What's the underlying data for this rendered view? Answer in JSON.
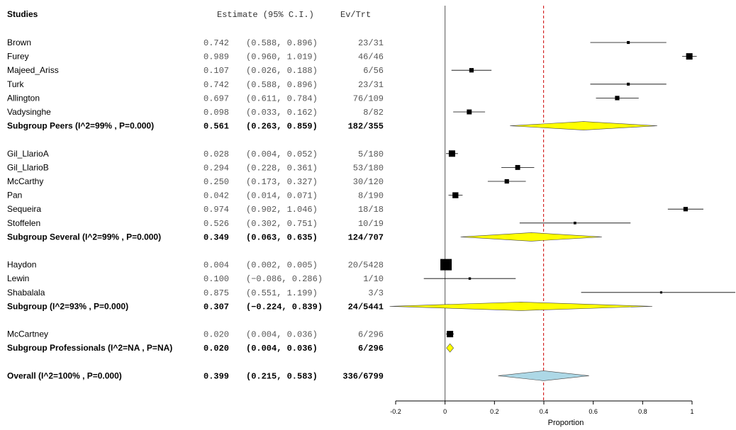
{
  "chart_data": {
    "type": "forest",
    "header": {
      "studies": "Studies",
      "estimate": "Estimate (95% C.I.)",
      "evtrt": "Ev/Trt"
    },
    "xlabel": "Proportion",
    "xlim": [
      -0.2,
      1.0
    ],
    "ticks": [
      "-0.2",
      "0",
      "0.2",
      "0.4",
      "0.6",
      "0.8",
      "1"
    ],
    "tick_values": [
      -0.2,
      0,
      0.2,
      0.4,
      0.6,
      0.8,
      1.0
    ],
    "null_line": 0,
    "overall_line": 0.399,
    "colors": {
      "subgroup": "#ffff00",
      "overall": "#add8e6",
      "reference": "#cc0000"
    },
    "rows": [
      {
        "kind": "study",
        "label": "Brown",
        "est": "0.742",
        "ci": "(0.588, 0.896)",
        "evtrt": "23/31",
        "e": 0.742,
        "l": 0.588,
        "u": 0.896,
        "w": 0.15
      },
      {
        "kind": "study",
        "label": "Furey",
        "est": "0.989",
        "ci": "(0.960, 1.019)",
        "evtrt": "46/46",
        "e": 0.989,
        "l": 0.96,
        "u": 1.019,
        "w": 0.5
      },
      {
        "kind": "study",
        "label": "Majeed_Ariss",
        "est": "0.107",
        "ci": "(0.026, 0.188)",
        "evtrt": "6/56",
        "e": 0.107,
        "l": 0.026,
        "u": 0.188,
        "w": 0.3
      },
      {
        "kind": "study",
        "label": "Turk",
        "est": "0.742",
        "ci": "(0.588, 0.896)",
        "evtrt": "23/31",
        "e": 0.742,
        "l": 0.588,
        "u": 0.896,
        "w": 0.15
      },
      {
        "kind": "study",
        "label": "Allington",
        "est": "0.697",
        "ci": "(0.611, 0.784)",
        "evtrt": "76/109",
        "e": 0.697,
        "l": 0.611,
        "u": 0.784,
        "w": 0.3
      },
      {
        "kind": "study",
        "label": "Vadysinghe",
        "est": "0.098",
        "ci": "(0.033, 0.162)",
        "evtrt": "8/82",
        "e": 0.098,
        "l": 0.033,
        "u": 0.162,
        "w": 0.35
      },
      {
        "kind": "subgroup",
        "label": "Subgroup Peers (I^2=99% , P=0.000)",
        "est": "0.561",
        "ci": "(0.263, 0.859)",
        "evtrt": "182/355",
        "e": 0.561,
        "l": 0.263,
        "u": 0.859
      },
      {
        "kind": "blank"
      },
      {
        "kind": "study",
        "label": "Gil_LlarioA",
        "est": "0.028",
        "ci": "(0.004, 0.052)",
        "evtrt": "5/180",
        "e": 0.028,
        "l": 0.004,
        "u": 0.052,
        "w": 0.5
      },
      {
        "kind": "study",
        "label": "Gil_LlarioB",
        "est": "0.294",
        "ci": "(0.228, 0.361)",
        "evtrt": "53/180",
        "e": 0.294,
        "l": 0.228,
        "u": 0.361,
        "w": 0.35
      },
      {
        "kind": "study",
        "label": "McCarthy",
        "est": "0.250",
        "ci": "(0.173, 0.327)",
        "evtrt": "30/120",
        "e": 0.25,
        "l": 0.173,
        "u": 0.327,
        "w": 0.3
      },
      {
        "kind": "study",
        "label": "Pan",
        "est": "0.042",
        "ci": "(0.014, 0.071)",
        "evtrt": "8/190",
        "e": 0.042,
        "l": 0.014,
        "u": 0.071,
        "w": 0.45
      },
      {
        "kind": "study",
        "label": "Sequeira",
        "est": "0.974",
        "ci": "(0.902, 1.046)",
        "evtrt": "18/18",
        "e": 0.974,
        "l": 0.902,
        "u": 1.046,
        "w": 0.3
      },
      {
        "kind": "study",
        "label": "Stoffelen",
        "est": "0.526",
        "ci": "(0.302, 0.751)",
        "evtrt": "10/19",
        "e": 0.526,
        "l": 0.302,
        "u": 0.751,
        "w": 0.12
      },
      {
        "kind": "subgroup",
        "label": "Subgroup Several (I^2=99% , P=0.000)",
        "est": "0.349",
        "ci": "(0.063, 0.635)",
        "evtrt": "124/707",
        "e": 0.349,
        "l": 0.063,
        "u": 0.635
      },
      {
        "kind": "blank"
      },
      {
        "kind": "study",
        "label": "Haydon",
        "est": "0.004",
        "ci": "(0.002, 0.005)",
        "evtrt": "20/5428",
        "e": 0.004,
        "l": 0.002,
        "u": 0.005,
        "w": 1.0
      },
      {
        "kind": "study",
        "label": "Lewin",
        "est": "0.100",
        "ci": "(−0.086, 0.286)",
        "evtrt": "1/10",
        "e": 0.1,
        "l": -0.086,
        "u": 0.286,
        "w": 0.1
      },
      {
        "kind": "study",
        "label": "Shabalala",
        "est": "0.875",
        "ci": "(0.551, 1.199)",
        "evtrt": "3/3",
        "e": 0.875,
        "l": 0.551,
        "u": 1.199,
        "w": 0.08
      },
      {
        "kind": "subgroup",
        "label": "Subgroup  (I^2=93% , P=0.000)",
        "est": "0.307",
        "ci": "(−0.224, 0.839)",
        "evtrt": "24/5441",
        "e": 0.307,
        "l": -0.224,
        "u": 0.839
      },
      {
        "kind": "blank"
      },
      {
        "kind": "study",
        "label": "McCartney",
        "est": "0.020",
        "ci": "(0.004, 0.036)",
        "evtrt": "6/296",
        "e": 0.02,
        "l": 0.004,
        "u": 0.036,
        "w": 0.5
      },
      {
        "kind": "subgroup",
        "label": "Subgroup Professionals (I^2=NA , P=NA)",
        "est": "0.020",
        "ci": "(0.004, 0.036)",
        "evtrt": "6/296",
        "e": 0.02,
        "l": 0.004,
        "u": 0.036
      },
      {
        "kind": "blank"
      },
      {
        "kind": "overall",
        "label": "Overall (I^2=100% , P=0.000)",
        "est": "0.399",
        "ci": "(0.215, 0.583)",
        "evtrt": "336/6799",
        "e": 0.399,
        "l": 0.215,
        "u": 0.583
      }
    ]
  }
}
